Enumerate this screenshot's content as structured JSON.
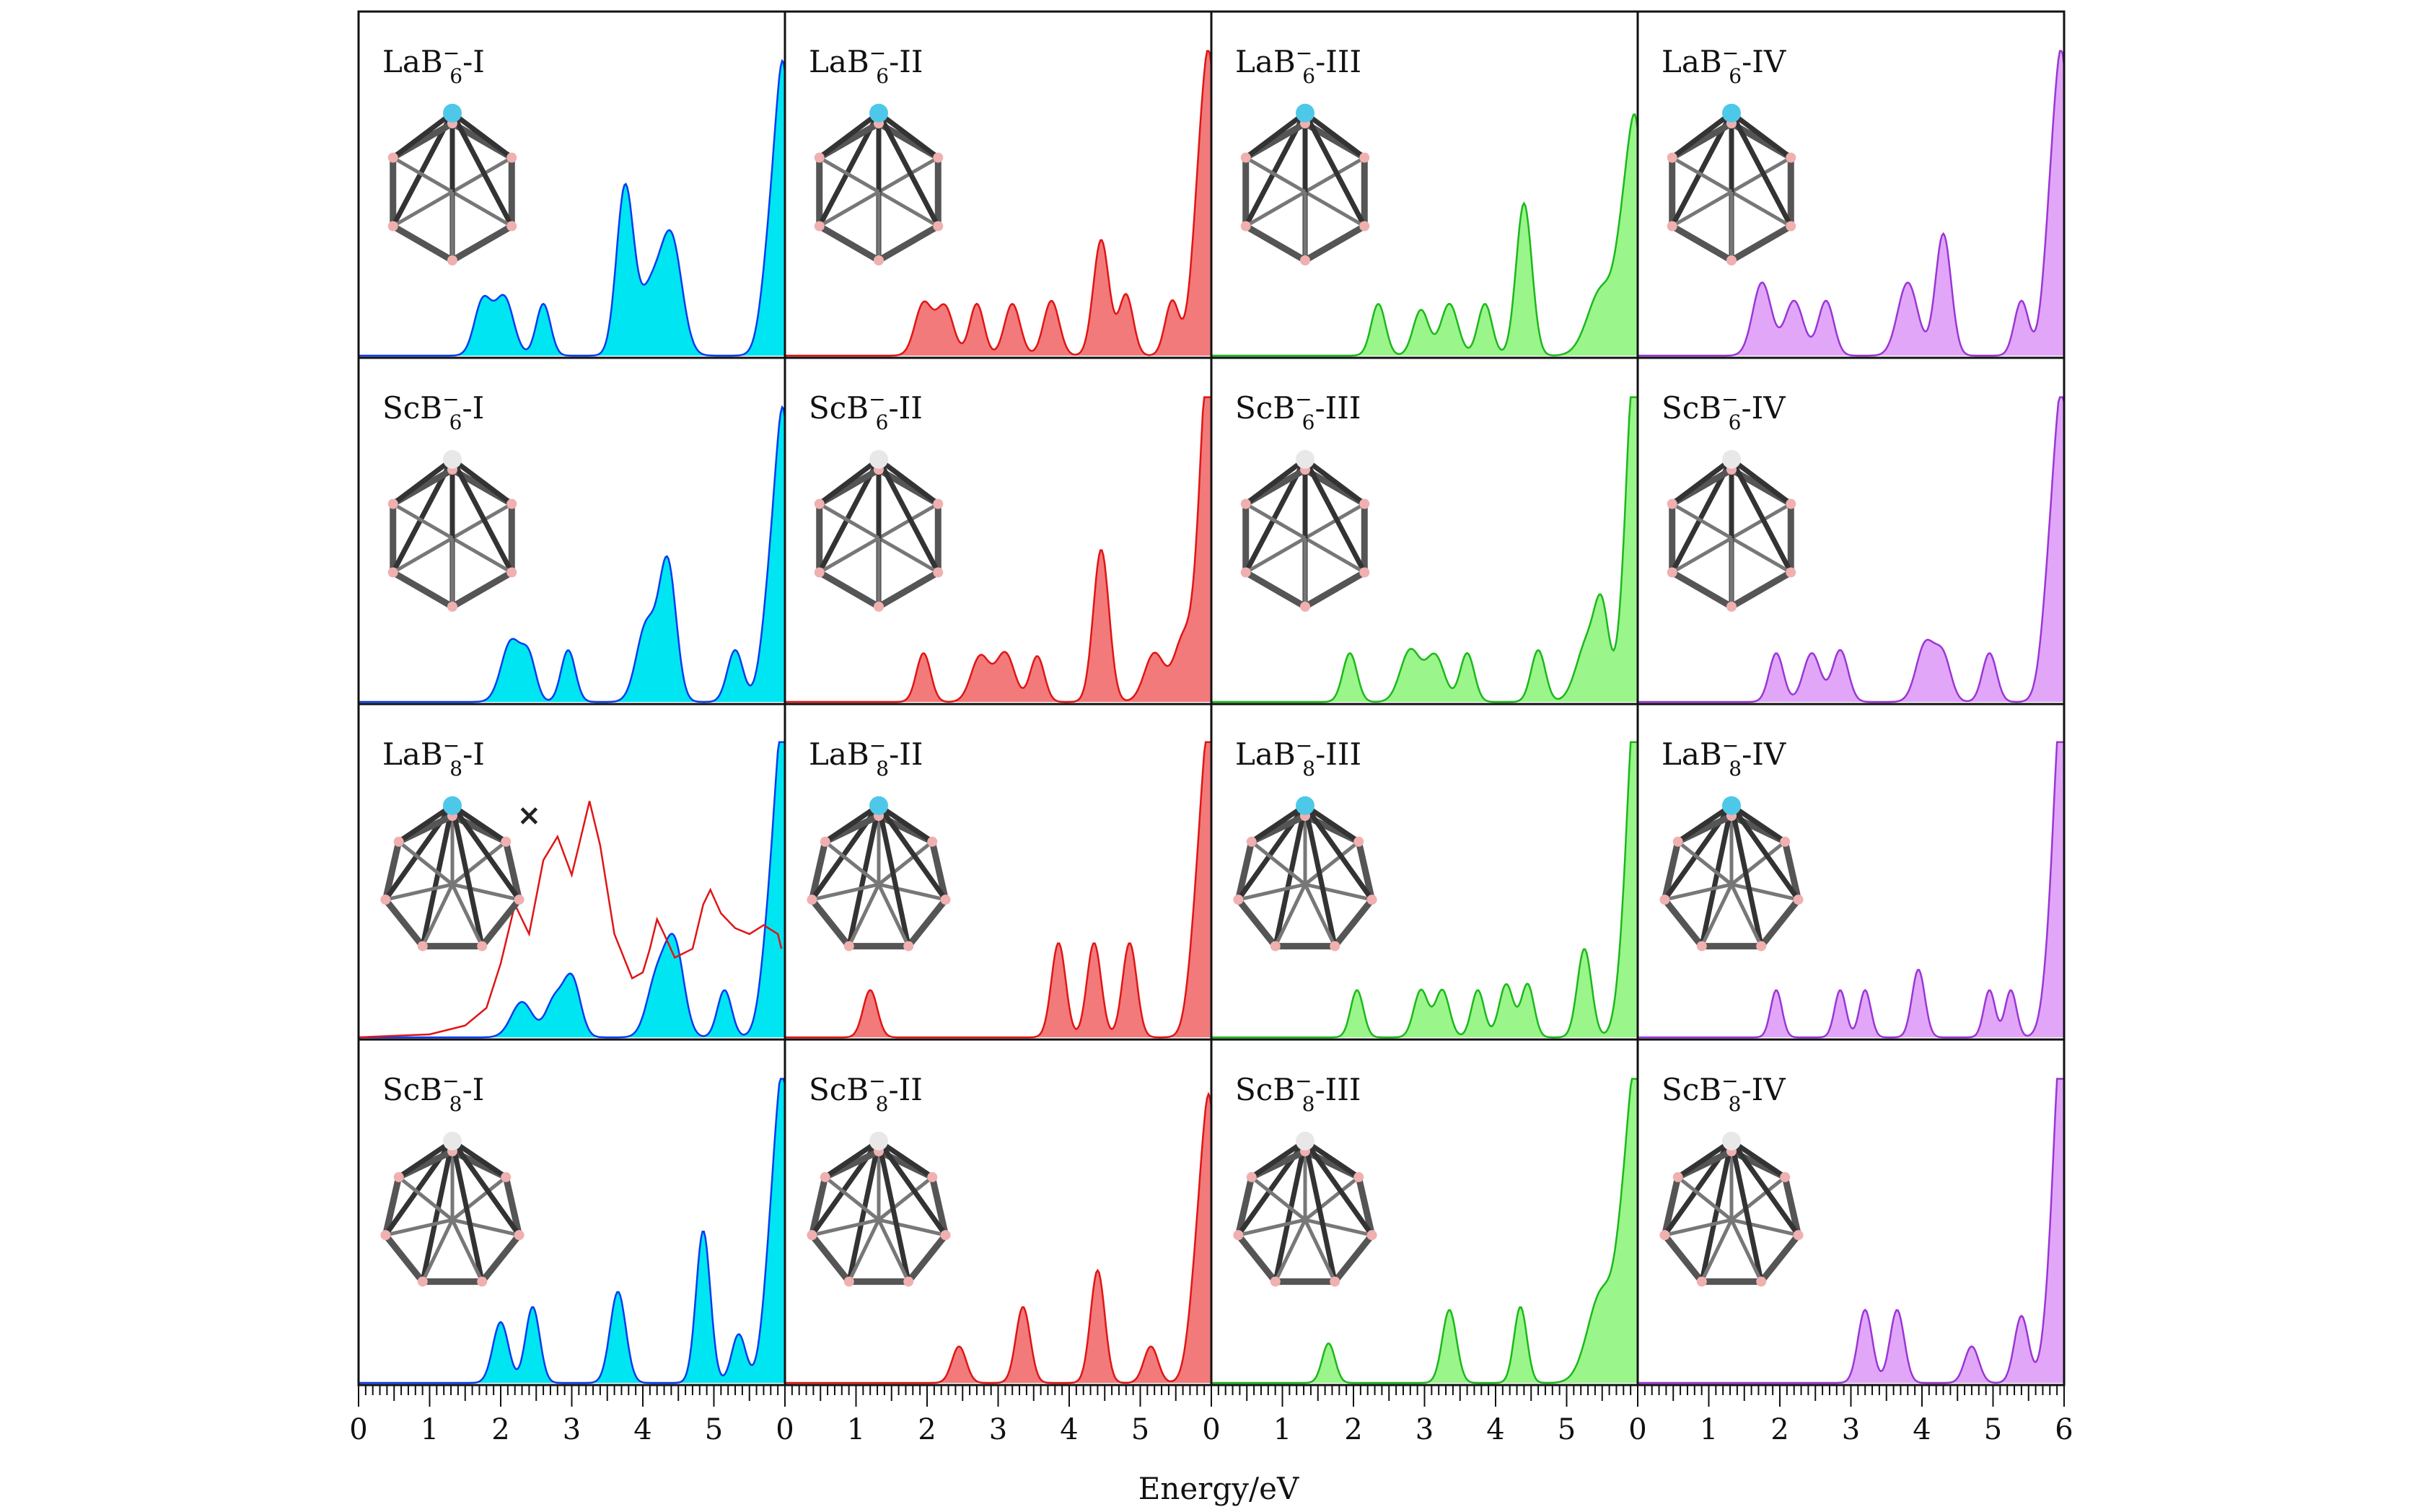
{
  "chart_data": {
    "type": "area",
    "layout": "4x4 grid of small multiples sharing the x axis",
    "xlabel": "Energy/eV",
    "xlim": [
      0,
      6
    ],
    "x_tick_labels": [
      "0",
      "1",
      "2",
      "3",
      "4",
      "5",
      "0",
      "1",
      "2",
      "3",
      "4",
      "5",
      "0",
      "1",
      "2",
      "3",
      "4",
      "5",
      "0",
      "1",
      "2",
      "3",
      "4",
      "5",
      "6"
    ],
    "grid": false,
    "panels": [
      {
        "label": {
          "base": "LaB",
          "sub": "6",
          "sup": "−",
          "suffix": "-I"
        },
        "color": "#00e5f2",
        "edge": "#0a3cf0",
        "peaks": [
          [
            1.75,
            0.18,
            0.12
          ],
          [
            2.05,
            0.19,
            0.13
          ],
          [
            2.6,
            0.17,
            0.1
          ],
          [
            3.75,
            0.55,
            0.12
          ],
          [
            4.1,
            0.2,
            0.15
          ],
          [
            4.4,
            0.38,
            0.15
          ],
          [
            5.85,
            0.5,
            0.14
          ],
          [
            6.0,
            0.65,
            0.1
          ]
        ]
      },
      {
        "label": {
          "base": "LaB",
          "sub": "6",
          "sup": "−",
          "suffix": "-II"
        },
        "color": "#f27a7a",
        "edge": "#e01515",
        "peaks": [
          [
            1.95,
            0.17,
            0.12
          ],
          [
            2.25,
            0.16,
            0.12
          ],
          [
            2.7,
            0.17,
            0.1
          ],
          [
            3.2,
            0.17,
            0.11
          ],
          [
            3.75,
            0.18,
            0.11
          ],
          [
            4.45,
            0.38,
            0.11
          ],
          [
            4.8,
            0.2,
            0.1
          ],
          [
            5.45,
            0.18,
            0.1
          ],
          [
            5.85,
            0.55,
            0.12
          ],
          [
            6.0,
            0.7,
            0.1
          ]
        ]
      },
      {
        "label": {
          "base": "LaB",
          "sub": "6",
          "sup": "−",
          "suffix": "-III"
        },
        "color": "#9af58a",
        "edge": "#1bb81b",
        "peaks": [
          [
            2.35,
            0.17,
            0.1
          ],
          [
            2.95,
            0.15,
            0.11
          ],
          [
            3.35,
            0.17,
            0.12
          ],
          [
            3.85,
            0.17,
            0.1
          ],
          [
            4.4,
            0.5,
            0.11
          ],
          [
            5.5,
            0.22,
            0.2
          ],
          [
            5.85,
            0.45,
            0.13
          ],
          [
            6.0,
            0.5,
            0.1
          ]
        ]
      },
      {
        "label": {
          "base": "LaB",
          "sub": "6",
          "sup": "−",
          "suffix": "-IV"
        },
        "color": "#e2a6f8",
        "edge": "#9a36d6",
        "peaks": [
          [
            1.75,
            0.24,
            0.13
          ],
          [
            2.2,
            0.18,
            0.13
          ],
          [
            2.65,
            0.18,
            0.11
          ],
          [
            3.8,
            0.24,
            0.14
          ],
          [
            4.3,
            0.4,
            0.11
          ],
          [
            5.4,
            0.18,
            0.1
          ],
          [
            5.85,
            0.55,
            0.12
          ],
          [
            6.0,
            0.7,
            0.1
          ]
        ]
      },
      {
        "label": {
          "base": "ScB",
          "sub": "6",
          "sup": "−",
          "suffix": "-I"
        },
        "color": "#00e5f2",
        "edge": "#0a3cf0",
        "peaks": [
          [
            2.15,
            0.2,
            0.14
          ],
          [
            2.4,
            0.13,
            0.1
          ],
          [
            2.95,
            0.17,
            0.1
          ],
          [
            4.05,
            0.25,
            0.14
          ],
          [
            4.35,
            0.45,
            0.12
          ],
          [
            5.3,
            0.17,
            0.11
          ],
          [
            5.85,
            0.5,
            0.14
          ],
          [
            6.0,
            0.65,
            0.1
          ]
        ]
      },
      {
        "label": {
          "base": "ScB",
          "sub": "6",
          "sup": "−",
          "suffix": "-II"
        },
        "color": "#f27a7a",
        "edge": "#e01515",
        "peaks": [
          [
            1.95,
            0.16,
            0.1
          ],
          [
            2.75,
            0.15,
            0.13
          ],
          [
            3.1,
            0.16,
            0.13
          ],
          [
            3.55,
            0.15,
            0.1
          ],
          [
            4.45,
            0.5,
            0.11
          ],
          [
            5.2,
            0.16,
            0.14
          ],
          [
            5.6,
            0.2,
            0.13
          ],
          [
            5.9,
            0.6,
            0.12
          ],
          [
            6.0,
            0.7,
            0.1
          ]
        ]
      },
      {
        "label": {
          "base": "ScB",
          "sub": "6",
          "sup": "−",
          "suffix": "-III"
        },
        "color": "#9af58a",
        "edge": "#1bb81b",
        "peaks": [
          [
            1.95,
            0.16,
            0.1
          ],
          [
            2.8,
            0.17,
            0.14
          ],
          [
            3.15,
            0.15,
            0.13
          ],
          [
            3.6,
            0.16,
            0.1
          ],
          [
            4.6,
            0.17,
            0.1
          ],
          [
            5.3,
            0.2,
            0.16
          ],
          [
            5.5,
            0.25,
            0.1
          ],
          [
            5.9,
            0.6,
            0.12
          ],
          [
            6.0,
            0.7,
            0.1
          ]
        ]
      },
      {
        "label": {
          "base": "ScB",
          "sub": "6",
          "sup": "−",
          "suffix": "-IV"
        },
        "color": "#e2a6f8",
        "edge": "#9a36d6",
        "peaks": [
          [
            1.95,
            0.16,
            0.1
          ],
          [
            2.45,
            0.16,
            0.12
          ],
          [
            2.85,
            0.17,
            0.11
          ],
          [
            4.05,
            0.19,
            0.13
          ],
          [
            4.3,
            0.14,
            0.11
          ],
          [
            4.95,
            0.16,
            0.1
          ],
          [
            5.85,
            0.55,
            0.13
          ],
          [
            6.0,
            0.7,
            0.1
          ]
        ]
      },
      {
        "label": {
          "base": "LaB",
          "sub": "8",
          "sup": "−",
          "suffix": "-I"
        },
        "color": "#00e5f2",
        "edge": "#0a3cf0",
        "peaks": [
          [
            2.3,
            0.12,
            0.15
          ],
          [
            2.75,
            0.12,
            0.12
          ],
          [
            3.0,
            0.2,
            0.12
          ],
          [
            4.2,
            0.2,
            0.14
          ],
          [
            4.45,
            0.3,
            0.13
          ],
          [
            5.15,
            0.16,
            0.1
          ],
          [
            5.85,
            0.55,
            0.14
          ],
          [
            6.0,
            0.75,
            0.1
          ]
        ],
        "overlay": {
          "marker": "×",
          "color": "#e01515",
          "points": [
            [
              0.0,
              0.0
            ],
            [
              1.0,
              0.01
            ],
            [
              1.5,
              0.04
            ],
            [
              1.8,
              0.1
            ],
            [
              2.0,
              0.25
            ],
            [
              2.2,
              0.45
            ],
            [
              2.4,
              0.35
            ],
            [
              2.6,
              0.6
            ],
            [
              2.8,
              0.68
            ],
            [
              3.0,
              0.55
            ],
            [
              3.1,
              0.65
            ],
            [
              3.25,
              0.8
            ],
            [
              3.4,
              0.65
            ],
            [
              3.6,
              0.35
            ],
            [
              3.85,
              0.2
            ],
            [
              4.0,
              0.22
            ],
            [
              4.1,
              0.3
            ],
            [
              4.2,
              0.4
            ],
            [
              4.3,
              0.35
            ],
            [
              4.45,
              0.27
            ],
            [
              4.7,
              0.3
            ],
            [
              4.85,
              0.45
            ],
            [
              4.95,
              0.5
            ],
            [
              5.1,
              0.42
            ],
            [
              5.3,
              0.37
            ],
            [
              5.5,
              0.35
            ],
            [
              5.7,
              0.38
            ],
            [
              5.9,
              0.35
            ],
            [
              5.95,
              0.3
            ]
          ]
        }
      },
      {
        "label": {
          "base": "LaB",
          "sub": "8",
          "sup": "−",
          "suffix": "-II"
        },
        "color": "#f27a7a",
        "edge": "#e01515",
        "peaks": [
          [
            1.2,
            0.16,
            0.1
          ],
          [
            3.85,
            0.32,
            0.1
          ],
          [
            4.35,
            0.32,
            0.1
          ],
          [
            4.85,
            0.32,
            0.1
          ],
          [
            5.85,
            0.55,
            0.13
          ],
          [
            6.0,
            0.75,
            0.1
          ]
        ]
      },
      {
        "label": {
          "base": "LaB",
          "sub": "8",
          "sup": "−",
          "suffix": "-III"
        },
        "color": "#9af58a",
        "edge": "#1bb81b",
        "peaks": [
          [
            2.05,
            0.16,
            0.09
          ],
          [
            2.95,
            0.16,
            0.1
          ],
          [
            3.25,
            0.16,
            0.1
          ],
          [
            3.75,
            0.16,
            0.09
          ],
          [
            4.15,
            0.18,
            0.1
          ],
          [
            4.45,
            0.18,
            0.09
          ],
          [
            5.25,
            0.3,
            0.1
          ],
          [
            5.9,
            0.55,
            0.13
          ],
          [
            6.0,
            0.75,
            0.1
          ]
        ]
      },
      {
        "label": {
          "base": "LaB",
          "sub": "8",
          "sup": "−",
          "suffix": "-IV"
        },
        "color": "#e2a6f8",
        "edge": "#9a36d6",
        "peaks": [
          [
            1.95,
            0.16,
            0.08
          ],
          [
            2.85,
            0.16,
            0.08
          ],
          [
            3.2,
            0.16,
            0.08
          ],
          [
            3.95,
            0.23,
            0.09
          ],
          [
            4.95,
            0.16,
            0.08
          ],
          [
            5.25,
            0.16,
            0.08
          ],
          [
            5.9,
            0.55,
            0.13
          ],
          [
            6.0,
            0.75,
            0.1
          ]
        ]
      },
      {
        "label": {
          "base": "ScB",
          "sub": "8",
          "sup": "−",
          "suffix": "-I"
        },
        "color": "#00e5f2",
        "edge": "#0a3cf0",
        "peaks": [
          [
            2.0,
            0.2,
            0.11
          ],
          [
            2.45,
            0.25,
            0.1
          ],
          [
            3.65,
            0.3,
            0.11
          ],
          [
            4.85,
            0.5,
            0.1
          ],
          [
            5.35,
            0.16,
            0.1
          ],
          [
            5.85,
            0.55,
            0.13
          ],
          [
            6.0,
            0.7,
            0.1
          ]
        ]
      },
      {
        "label": {
          "base": "ScB",
          "sub": "8",
          "sup": "−",
          "suffix": "-II"
        },
        "color": "#f27a7a",
        "edge": "#e01515",
        "peaks": [
          [
            2.45,
            0.12,
            0.1
          ],
          [
            3.35,
            0.25,
            0.1
          ],
          [
            4.4,
            0.37,
            0.1
          ],
          [
            5.15,
            0.12,
            0.1
          ],
          [
            5.85,
            0.5,
            0.13
          ],
          [
            6.0,
            0.65,
            0.1
          ]
        ]
      },
      {
        "label": {
          "base": "ScB",
          "sub": "8",
          "sup": "−",
          "suffix": "-III"
        },
        "color": "#9af58a",
        "edge": "#1bb81b",
        "peaks": [
          [
            1.65,
            0.13,
            0.09
          ],
          [
            3.35,
            0.24,
            0.1
          ],
          [
            4.35,
            0.25,
            0.09
          ],
          [
            5.5,
            0.3,
            0.2
          ],
          [
            5.85,
            0.55,
            0.13
          ],
          [
            6.0,
            0.7,
            0.1
          ]
        ]
      },
      {
        "label": {
          "base": "ScB",
          "sub": "8",
          "sup": "−",
          "suffix": "-IV"
        },
        "color": "#e2a6f8",
        "edge": "#9a36d6",
        "peaks": [
          [
            3.2,
            0.24,
            0.1
          ],
          [
            3.65,
            0.24,
            0.1
          ],
          [
            4.7,
            0.12,
            0.1
          ],
          [
            5.4,
            0.22,
            0.1
          ],
          [
            5.9,
            0.55,
            0.13
          ],
          [
            6.0,
            0.75,
            0.1
          ]
        ]
      }
    ],
    "cluster_atom_colors": {
      "bond": "#555555",
      "boron": "#f0b0b0",
      "lanthanum": "#4ec8e8",
      "scandium": "#e8e8e8"
    }
  }
}
